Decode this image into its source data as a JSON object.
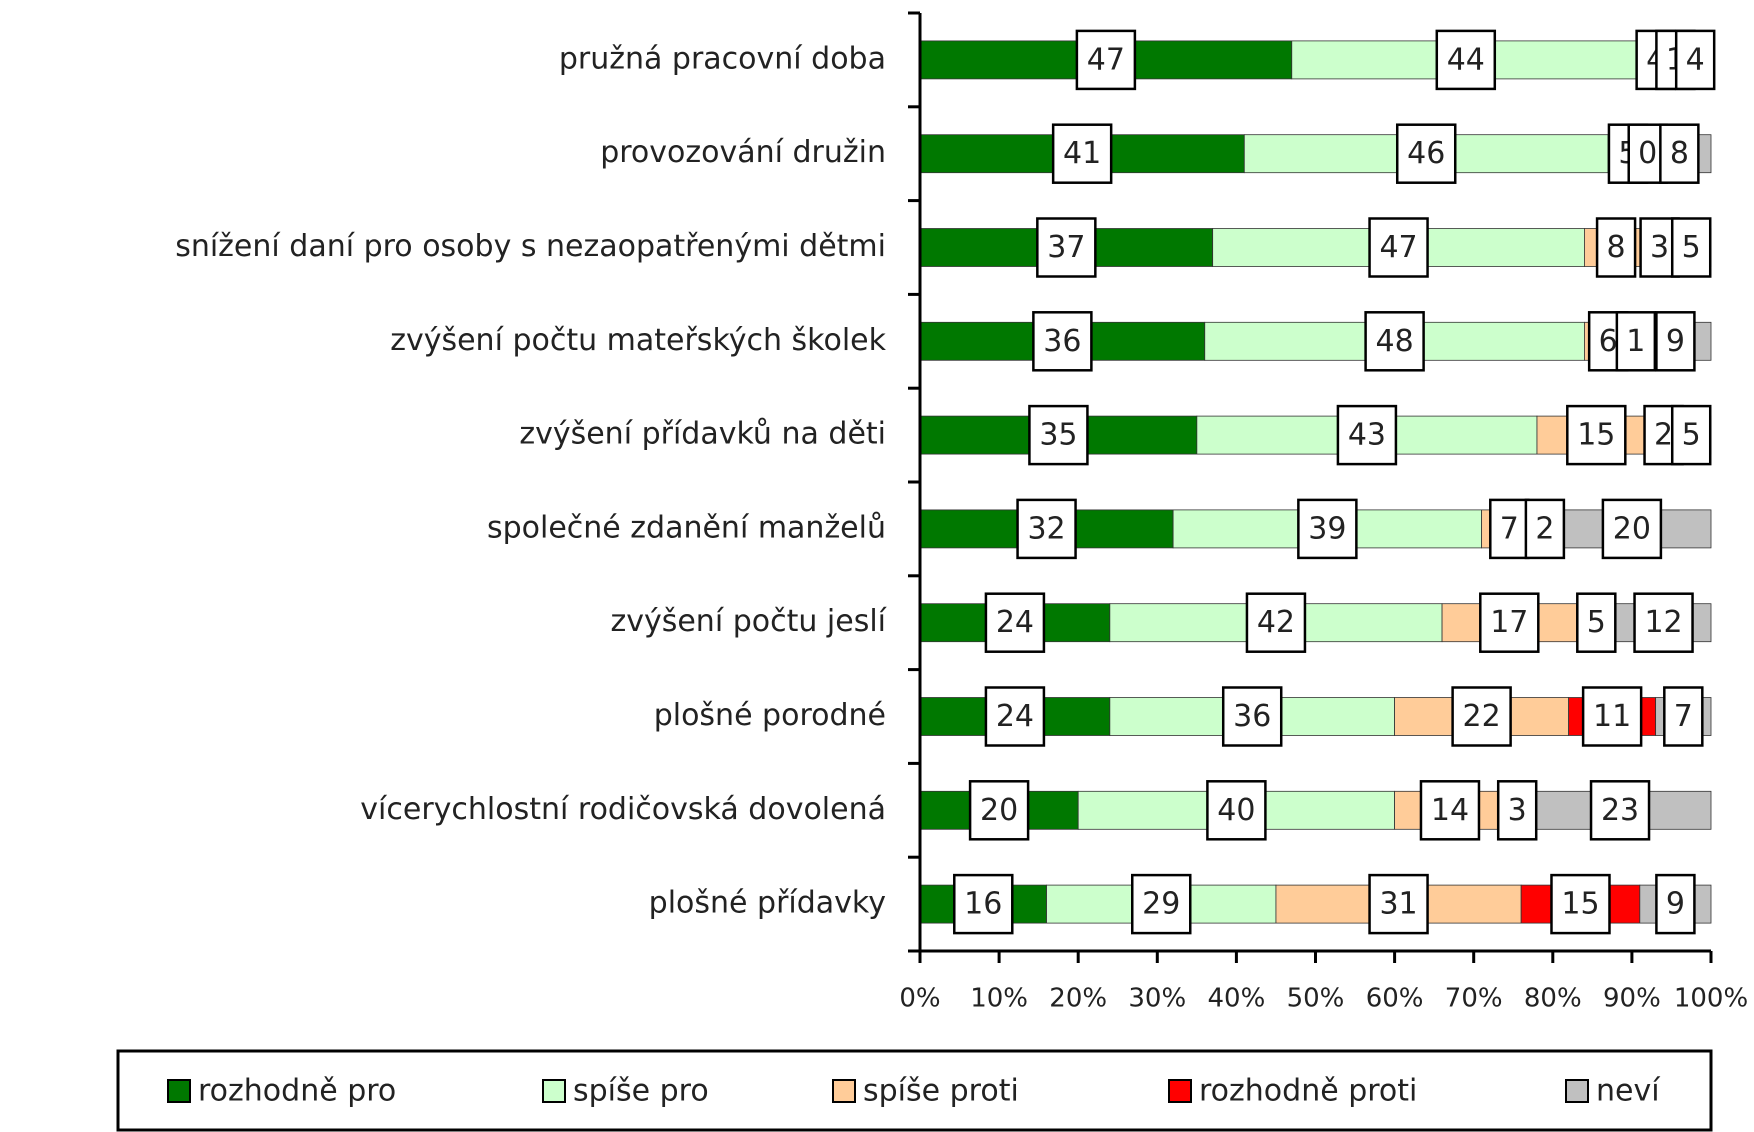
{
  "chart_data": {
    "type": "stacked_bar_horizontal",
    "categories": [
      "pružná pracovní doba",
      "provozování družin",
      "snížení daní pro osoby s nezaopatřenými dětmi",
      "zvýšení počtu mateřských školek",
      "zvýšení přídavků na děti",
      "společné zdanění manželů",
      "zvýšení počtu jeslí",
      "plošné porodné",
      "vícerychlostní rodičovská dovolená",
      "plošné přídavky"
    ],
    "series": [
      {
        "name": "rozhodně pro",
        "color": "#007800",
        "values": [
          47,
          41,
          37,
          36,
          35,
          32,
          24,
          24,
          20,
          16
        ]
      },
      {
        "name": "spíše pro",
        "color": "#ccffcc",
        "values": [
          44,
          46,
          47,
          48,
          43,
          39,
          42,
          36,
          40,
          29
        ]
      },
      {
        "name": "spíše proti",
        "color": "#ffcc99",
        "values": [
          4,
          5,
          8,
          6,
          15,
          7,
          17,
          22,
          14,
          31
        ]
      },
      {
        "name": "rozhodně proti",
        "color": "#ff0000",
        "values": [
          1,
          0,
          3,
          1,
          2,
          2,
          5,
          11,
          3,
          15
        ]
      },
      {
        "name": "neví",
        "color": "#c0c0c0",
        "values": [
          4,
          8,
          5,
          9,
          5,
          20,
          12,
          7,
          23,
          9
        ]
      }
    ],
    "xlim": [
      0,
      100
    ],
    "xticks": [
      {
        "value": 0,
        "label": "0%"
      },
      {
        "value": 10,
        "label": "10%"
      },
      {
        "value": 20,
        "label": "20%"
      },
      {
        "value": 30,
        "label": "30%"
      },
      {
        "value": 40,
        "label": "40%"
      },
      {
        "value": 50,
        "label": "50%"
      },
      {
        "value": 60,
        "label": "60%"
      },
      {
        "value": 70,
        "label": "70%"
      },
      {
        "value": 80,
        "label": "80%"
      },
      {
        "value": 90,
        "label": "90%"
      },
      {
        "value": 100,
        "label": "100%"
      }
    ],
    "legend": "bottom"
  }
}
